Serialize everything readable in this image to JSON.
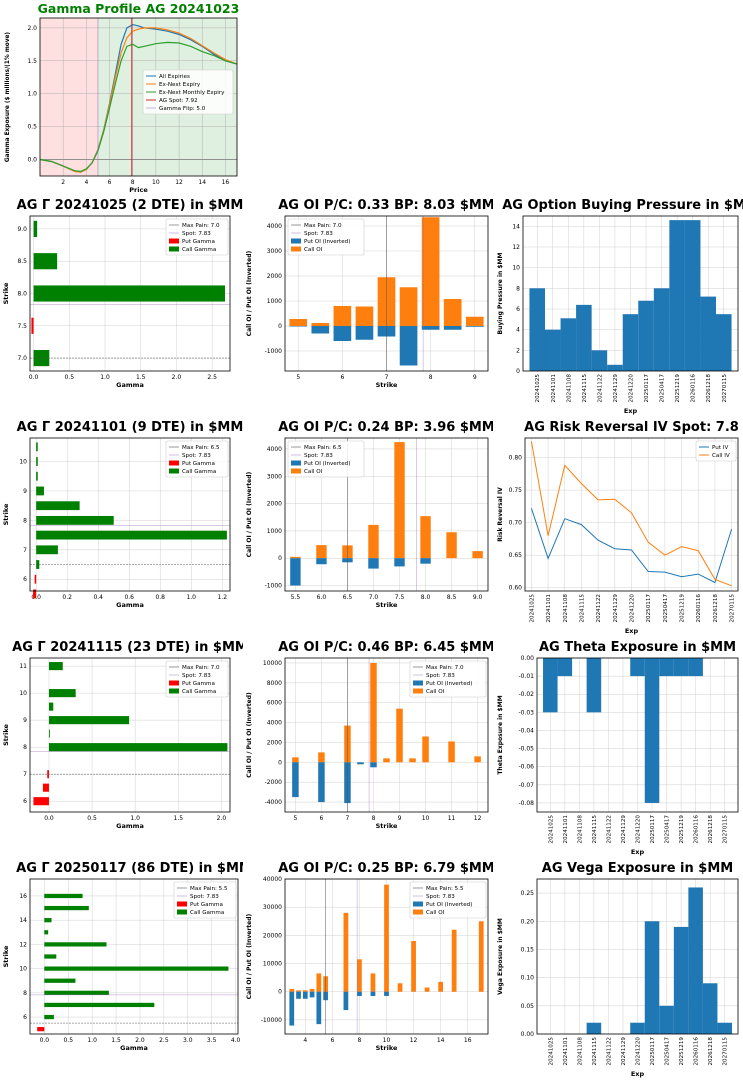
{
  "colors": {
    "blue": "#1f77b4",
    "orange": "#ff7f0e",
    "green": "#2ca02c",
    "red": "#d62728",
    "purple": "#9467bd",
    "bar_green": "#008000",
    "bar_red": "#ff0000",
    "title_green": "#008000",
    "bg_red": "#ffcccc",
    "bg_green": "#cce6cc"
  },
  "chart_data": [
    {
      "id": "gamma-profile",
      "type": "line",
      "title": "Gamma Profile AG 20241023",
      "xlabel": "Price",
      "ylabel": "Gamma Exposure ($ millions/(1% move)",
      "xlim": [
        0,
        17
      ],
      "ylim": [
        -0.25,
        2.15
      ],
      "xticks": [
        2,
        4,
        6,
        8,
        10,
        12,
        14,
        16
      ],
      "yticks": [
        0.0,
        0.5,
        1.0,
        1.5,
        2.0
      ],
      "spot": 7.92,
      "flip": 5.0,
      "legend": [
        "All Expiries",
        "Ex-Next Expiry",
        "Ex-Next Monthly Expiry",
        "AG Spot: 7.92",
        "Gamma Flip: 5.0"
      ],
      "x": [
        0,
        1,
        2,
        3,
        3.5,
        4,
        4.5,
        5,
        5.5,
        6,
        6.5,
        7,
        7.5,
        8,
        8.5,
        9,
        10,
        11,
        12,
        13,
        14,
        15,
        16,
        17
      ],
      "series": [
        {
          "name": "All Expiries",
          "values": [
            0,
            -0.03,
            -0.1,
            -0.18,
            -0.19,
            -0.15,
            -0.05,
            0.15,
            0.45,
            0.85,
            1.3,
            1.75,
            2.0,
            2.05,
            2.03,
            2.0,
            1.98,
            1.95,
            1.9,
            1.82,
            1.72,
            1.6,
            1.5,
            1.45
          ]
        },
        {
          "name": "Ex-Next Expiry",
          "values": [
            0,
            -0.03,
            -0.1,
            -0.18,
            -0.19,
            -0.15,
            -0.05,
            0.14,
            0.44,
            0.83,
            1.25,
            1.62,
            1.85,
            1.95,
            1.98,
            2.0,
            2.0,
            1.97,
            1.92,
            1.84,
            1.73,
            1.62,
            1.52,
            1.45
          ]
        },
        {
          "name": "Ex-Next Monthly Expiry",
          "values": [
            0,
            -0.03,
            -0.1,
            -0.17,
            -0.18,
            -0.14,
            -0.05,
            0.13,
            0.42,
            0.78,
            1.15,
            1.5,
            1.72,
            1.75,
            1.7,
            1.72,
            1.76,
            1.78,
            1.77,
            1.72,
            1.64,
            1.58,
            1.5,
            1.45
          ]
        }
      ]
    },
    {
      "id": "gamma-1025",
      "type": "bar-horizontal",
      "title": "AG Γ 20241025 (2 DTE) in $MM",
      "xlabel": "Gamma",
      "ylabel": "Strike",
      "xlim": [
        -0.05,
        2.75
      ],
      "ylim": [
        6.8,
        9.2
      ],
      "xticks": [
        0.0,
        0.5,
        1.0,
        1.5,
        2.0,
        2.5
      ],
      "yticks": [
        7.0,
        7.5,
        8.0,
        8.5,
        9.0
      ],
      "maxpain": 7.0,
      "spot": 7.83,
      "barh": 0.25,
      "legend": [
        "Max Pain: 7.0",
        "Spot: 7.83",
        "Put Gamma",
        "Call Gamma"
      ],
      "call": [
        {
          "s": 7.0,
          "v": 0.22
        },
        {
          "s": 8.0,
          "v": 2.68
        },
        {
          "s": 8.5,
          "v": 0.33
        },
        {
          "s": 9.0,
          "v": 0.05
        }
      ],
      "put": [
        {
          "s": 7.5,
          "v": -0.03
        }
      ]
    },
    {
      "id": "oi-1025",
      "type": "bar",
      "title": "AG OI P/C: 0.33 BP: 8.03 $MM",
      "xlabel": "Strike",
      "ylabel": "Call OI / Put OI (Inverted)",
      "xlim": [
        4.7,
        9.3
      ],
      "ylim": [
        -1800,
        4400
      ],
      "xticks": [
        5,
        6,
        7,
        8,
        9
      ],
      "yticks": [
        -1000,
        0,
        1000,
        2000,
        3000,
        4000
      ],
      "maxpain": 7.0,
      "spot": 7.83,
      "barw": 0.4,
      "legend": [
        "Max Pain: 7.0",
        "Spot: 7.83",
        "Put OI (Inverted)",
        "Call OI"
      ],
      "strikes": [
        5,
        5.5,
        6,
        6.5,
        7,
        7.5,
        8,
        8.5,
        9
      ],
      "call": [
        280,
        120,
        800,
        780,
        1950,
        1550,
        4350,
        1080,
        370
      ],
      "put": [
        -20,
        -300,
        -600,
        -550,
        -420,
        -1580,
        -150,
        -150,
        -30
      ]
    },
    {
      "id": "buying-pressure",
      "type": "bar",
      "title": "AG Option Buying Pressure in $MM",
      "xlabel": "Exp",
      "ylabel": "Buying Pressure in $MM",
      "ylim": [
        0,
        15
      ],
      "yticks": [
        0,
        2,
        4,
        6,
        8,
        10,
        12,
        14
      ],
      "categories": [
        "20241025",
        "20241101",
        "20241108",
        "20241115",
        "20241122",
        "20241129",
        "20241220",
        "20250117",
        "20250417",
        "20251219",
        "20260116",
        "20261218",
        "20270115"
      ],
      "values": [
        8.0,
        4.0,
        5.1,
        6.4,
        2.0,
        0.6,
        5.5,
        6.8,
        8.0,
        14.6,
        14.6,
        7.2,
        5.5
      ]
    },
    {
      "id": "gamma-1101",
      "type": "bar-horizontal",
      "title": "AG Γ 20241101 (9 DTE) in $MM",
      "xlabel": "Gamma",
      "ylabel": "Strike",
      "xlim": [
        -0.04,
        1.25
      ],
      "ylim": [
        5.6,
        10.8
      ],
      "xticks": [
        0.0,
        0.2,
        0.4,
        0.6,
        0.8,
        1.0,
        1.2
      ],
      "yticks": [
        6,
        7,
        8,
        9,
        10
      ],
      "maxpain": 6.5,
      "spot": 7.83,
      "barh": 0.3,
      "legend": [
        "Max Pain: 6.5",
        "Spot: 7.83",
        "Put Gamma",
        "Call Gamma"
      ],
      "call": [
        {
          "s": 6.5,
          "v": 0.02
        },
        {
          "s": 7.0,
          "v": 0.14
        },
        {
          "s": 7.5,
          "v": 1.23
        },
        {
          "s": 8.0,
          "v": 0.5
        },
        {
          "s": 8.5,
          "v": 0.28
        },
        {
          "s": 9.0,
          "v": 0.05
        },
        {
          "s": 9.5,
          "v": 0.01
        },
        {
          "s": 10.0,
          "v": 0.01
        },
        {
          "s": 10.5,
          "v": 0.01
        }
      ],
      "put": [
        {
          "s": 5.5,
          "v": -0.02
        },
        {
          "s": 6.0,
          "v": -0.01
        }
      ]
    },
    {
      "id": "oi-1101",
      "type": "bar",
      "title": "AG OI P/C: 0.24 BP: 3.96 $MM",
      "xlabel": "Strike",
      "ylabel": "Call OI / Put OI (Inverted)",
      "xlim": [
        5.3,
        9.2
      ],
      "ylim": [
        -1200,
        4400
      ],
      "xticks": [
        5.5,
        6.0,
        6.5,
        7.0,
        7.5,
        8.0,
        8.5,
        9.0
      ],
      "yticks": [
        -1000,
        0,
        1000,
        2000,
        3000,
        4000
      ],
      "maxpain": 6.5,
      "spot": 7.83,
      "barw": 0.2,
      "legend": [
        "Max Pain: 6.5",
        "Spot: 7.83",
        "Put OI (Inverted)",
        "Call OI"
      ],
      "strikes": [
        5.5,
        6.0,
        6.5,
        7.0,
        7.5,
        8.0,
        8.5,
        9.0
      ],
      "call": [
        50,
        480,
        470,
        1220,
        4250,
        1540,
        950,
        260
      ],
      "put": [
        -1000,
        -220,
        -150,
        -380,
        -300,
        -200,
        0,
        0
      ]
    },
    {
      "id": "risk-reversal",
      "type": "line",
      "title": "AG Risk Reversal IV Spot: 7.8",
      "xlabel": "Exp",
      "ylabel": "Risk Reversal IV",
      "ylim": [
        0.595,
        0.83
      ],
      "yticks": [
        0.6,
        0.65,
        0.7,
        0.75,
        0.8
      ],
      "legend": [
        "Put IV",
        "Call IV"
      ],
      "categories": [
        "20241025",
        "20241101",
        "20241108",
        "20241115",
        "20241122",
        "20241129",
        "20241220",
        "20250117",
        "20250417",
        "20251219",
        "20260116",
        "20261218",
        "20270115"
      ],
      "series": [
        {
          "name": "Put IV",
          "values": [
            0.722,
            0.645,
            0.706,
            0.697,
            0.673,
            0.66,
            0.658,
            0.625,
            0.624,
            0.617,
            0.621,
            0.608,
            0.69
          ]
        },
        {
          "name": "Call IV",
          "values": [
            0.825,
            0.68,
            0.788,
            0.76,
            0.735,
            0.736,
            0.715,
            0.67,
            0.65,
            0.663,
            0.657,
            0.613,
            0.603
          ]
        }
      ]
    },
    {
      "id": "gamma-1115",
      "type": "bar-horizontal",
      "title": "AG Γ 20241115 (23 DTE) in $MM",
      "xlabel": "Gamma",
      "ylabel": "Strike",
      "xlim": [
        -0.22,
        2.1
      ],
      "ylim": [
        5.6,
        11.3
      ],
      "xticks": [
        0.0,
        0.5,
        1.0,
        1.5,
        2.0
      ],
      "yticks": [
        6,
        7,
        8,
        9,
        10,
        11
      ],
      "maxpain": 7.0,
      "spot": 7.83,
      "barh": 0.3,
      "legend": [
        "Max Pain: 7.0",
        "Spot: 7.83",
        "Put Gamma",
        "Call Gamma"
      ],
      "call": [
        {
          "s": 8.0,
          "v": 2.07
        },
        {
          "s": 8.5,
          "v": 0.01
        },
        {
          "s": 9.0,
          "v": 0.93
        },
        {
          "s": 9.5,
          "v": 0.05
        },
        {
          "s": 10.0,
          "v": 0.31
        },
        {
          "s": 11.0,
          "v": 0.16
        }
      ],
      "put": [
        {
          "s": 6.0,
          "v": -0.18
        },
        {
          "s": 6.5,
          "v": -0.07
        },
        {
          "s": 7.0,
          "v": -0.02
        }
      ]
    },
    {
      "id": "oi-1115",
      "type": "bar",
      "title": "AG OI P/C: 0.46 BP: 6.45 $MM",
      "xlabel": "Strike",
      "ylabel": "Call OI / Put OI (Inverted)",
      "xlim": [
        4.6,
        12.4
      ],
      "ylim": [
        -5000,
        10500
      ],
      "xticks": [
        5,
        6,
        7,
        8,
        9,
        10,
        11,
        12
      ],
      "yticks": [
        -4000,
        -2000,
        0,
        2000,
        4000,
        6000,
        8000,
        10000
      ],
      "maxpain": 7.0,
      "spot": 7.83,
      "barw": 0.25,
      "legend": [
        "Max Pain: 7.0",
        "Spot: 7.83",
        "Put OI (Inverted)",
        "Call OI"
      ],
      "strikes": [
        5,
        6,
        7,
        7.5,
        8,
        8.5,
        9,
        9.5,
        10,
        11,
        12
      ],
      "call": [
        500,
        1000,
        3700,
        0,
        10000,
        400,
        5400,
        400,
        2600,
        2100,
        600
      ],
      "put": [
        -3500,
        -4000,
        -4100,
        -200,
        -500,
        0,
        0,
        0,
        0,
        0,
        0
      ]
    },
    {
      "id": "theta",
      "type": "bar",
      "title": "AG Theta Exposure in $MM",
      "xlabel": "Exp",
      "ylabel": "Theta Exposure in $MM",
      "ylim": [
        -0.085,
        0.0
      ],
      "yticks": [
        0.0,
        -0.01,
        -0.02,
        -0.03,
        -0.04,
        -0.05,
        -0.06,
        -0.07,
        -0.08
      ],
      "categories": [
        "20241025",
        "20241101",
        "20241108",
        "20241115",
        "20241122",
        "20241129",
        "20241220",
        "20250117",
        "20250417",
        "20251219",
        "20260116",
        "20261218",
        "20270115"
      ],
      "values": [
        -0.03,
        -0.01,
        0.0,
        -0.03,
        0.0,
        0.0,
        -0.01,
        -0.08,
        -0.01,
        -0.01,
        -0.01,
        0.0,
        0.0
      ]
    },
    {
      "id": "gamma-0117",
      "type": "bar-horizontal",
      "title": "AG Γ 20250117 (86 DTE) in $MM",
      "xlabel": "Gamma",
      "ylabel": "Strike",
      "xlim": [
        -0.3,
        4.05
      ],
      "ylim": [
        4.6,
        17.4
      ],
      "xticks": [
        0.0,
        0.5,
        1.0,
        1.5,
        2.0,
        2.5,
        3.0,
        3.5,
        4.0
      ],
      "yticks": [
        6,
        8,
        10,
        12,
        14,
        16
      ],
      "maxpain": 5.5,
      "spot": 7.83,
      "barh": 0.35,
      "legend": [
        "Max Pain: 5.5",
        "Spot: 7.83",
        "Put Gamma",
        "Call Gamma"
      ],
      "call": [
        {
          "s": 6,
          "v": 0.2
        },
        {
          "s": 7,
          "v": 2.3
        },
        {
          "s": 8,
          "v": 1.35
        },
        {
          "s": 9,
          "v": 0.65
        },
        {
          "s": 10,
          "v": 3.85
        },
        {
          "s": 11,
          "v": 0.25
        },
        {
          "s": 12,
          "v": 1.3
        },
        {
          "s": 13,
          "v": 0.08
        },
        {
          "s": 14,
          "v": 0.15
        },
        {
          "s": 15,
          "v": 0.93
        },
        {
          "s": 16,
          "v": 0.8
        }
      ],
      "put": [
        {
          "s": 5,
          "v": -0.15
        }
      ]
    },
    {
      "id": "oi-0117",
      "type": "bar",
      "title": "AG OI P/C: 0.25 BP: 6.79 $MM",
      "xlabel": "Strike",
      "ylabel": "Call OI / Put OI (Inverted)",
      "xlim": [
        2.5,
        17.5
      ],
      "ylim": [
        -15000,
        40000
      ],
      "xticks": [
        4,
        6,
        8,
        10,
        12,
        14,
        16
      ],
      "yticks": [
        -10000,
        0,
        10000,
        20000,
        30000,
        40000
      ],
      "maxpain": 5.5,
      "spot": 7.83,
      "barw": 0.35,
      "legend": [
        "Max Pain: 5.5",
        "Spot: 7.83",
        "Put OI (Inverted)",
        "Call OI"
      ],
      "strikes": [
        3,
        3.5,
        4,
        4.5,
        5,
        5.5,
        7,
        8,
        9,
        10,
        11,
        12,
        13,
        14,
        15,
        17
      ],
      "call": [
        1000,
        500,
        500,
        1000,
        6500,
        5500,
        28000,
        11500,
        6500,
        38000,
        3000,
        18000,
        1500,
        3500,
        22000,
        25000
      ],
      "put": [
        -12000,
        -2500,
        -2500,
        -2000,
        -11500,
        -3000,
        -6500,
        -1500,
        -1500,
        -1500,
        0,
        0,
        0,
        0,
        0,
        0
      ]
    },
    {
      "id": "vega",
      "type": "bar",
      "title": "AG Vega Exposure in $MM",
      "xlabel": "Exp",
      "ylabel": "Vega Exposure in $MM",
      "ylim": [
        0,
        0.275
      ],
      "yticks": [
        0.0,
        0.05,
        0.1,
        0.15,
        0.2,
        0.25
      ],
      "categories": [
        "20241025",
        "20241101",
        "20241108",
        "20241115",
        "20241122",
        "20241129",
        "20241220",
        "20250117",
        "20250417",
        "20251219",
        "20260116",
        "20261218",
        "20270115"
      ],
      "values": [
        0.0,
        0.0,
        0.0,
        0.02,
        0.0,
        0.0,
        0.02,
        0.2,
        0.05,
        0.19,
        0.26,
        0.09,
        0.02
      ]
    }
  ]
}
